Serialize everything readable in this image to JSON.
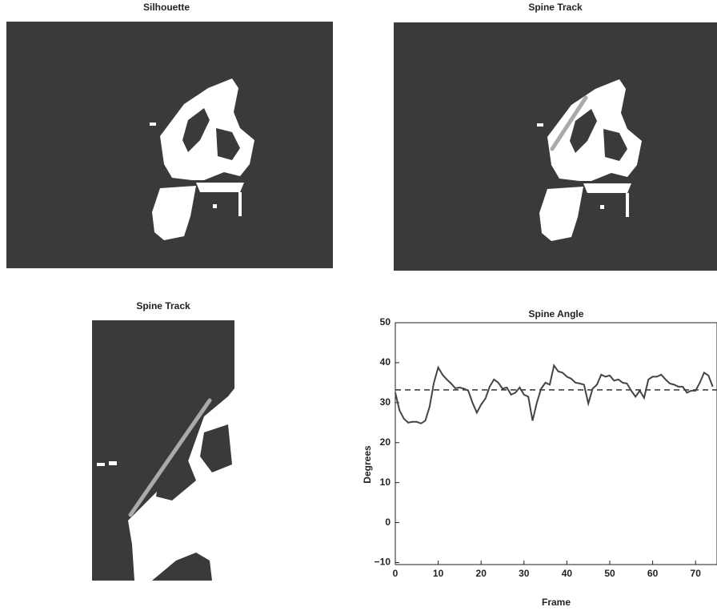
{
  "images": [
    {
      "title": "Silhouette"
    },
    {
      "title": "Spine Track"
    },
    {
      "title": "Spine Track"
    }
  ],
  "chart_data": {
    "type": "line",
    "title": "Spine Angle",
    "x_label": "Frame",
    "y_label": "Degrees",
    "x": [
      0,
      1,
      2,
      3,
      4,
      5,
      6,
      7,
      8,
      9,
      10,
      11,
      12,
      13,
      14,
      15,
      16,
      17,
      18,
      19,
      20,
      21,
      22,
      23,
      24,
      25,
      26,
      27,
      28,
      29,
      30,
      31,
      32,
      33,
      34,
      35,
      36,
      37,
      38,
      39,
      40,
      41,
      42,
      43,
      44,
      45,
      46,
      47,
      48,
      49,
      50,
      51,
      52,
      53,
      54,
      55,
      56,
      57,
      58,
      59,
      60,
      61,
      62,
      63,
      64,
      65,
      66,
      67,
      68,
      69,
      70,
      71,
      72,
      73,
      74
    ],
    "series": [
      {
        "color": "#444444",
        "values": [
          32.5,
          28,
          26,
          25,
          25.2,
          25.2,
          24.8,
          25.5,
          29,
          35,
          38.8,
          37,
          35.8,
          34.8,
          33.6,
          33.8,
          33.5,
          33,
          30,
          27.5,
          29.5,
          31,
          34,
          35.8,
          35,
          33.5,
          33.8,
          32,
          32.5,
          33.8,
          32,
          31.5,
          25.5,
          30,
          33.5,
          35,
          34.5,
          39.3,
          37.8,
          37.5,
          36.5,
          36,
          35,
          34.8,
          34.5,
          29.8,
          33.5,
          34.5,
          37,
          36.5,
          36.8,
          35.5,
          35.8,
          35,
          34.8,
          33,
          31.5,
          33,
          31.2,
          35.8,
          36.5,
          36.5,
          37,
          35.8,
          34.8,
          34.5,
          34,
          34,
          32.5,
          33,
          33,
          35,
          37.5,
          36.8,
          34
        ]
      }
    ],
    "reference_line": 33.2,
    "xlim": [
      0,
      75
    ],
    "xticks": [
      0,
      10,
      20,
      30,
      40,
      50,
      60,
      70
    ],
    "ylim": [
      -10.5,
      50
    ],
    "yticks": [
      {
        "value": -10,
        "label": "−10"
      },
      0,
      10,
      20,
      30,
      40,
      50
    ]
  }
}
